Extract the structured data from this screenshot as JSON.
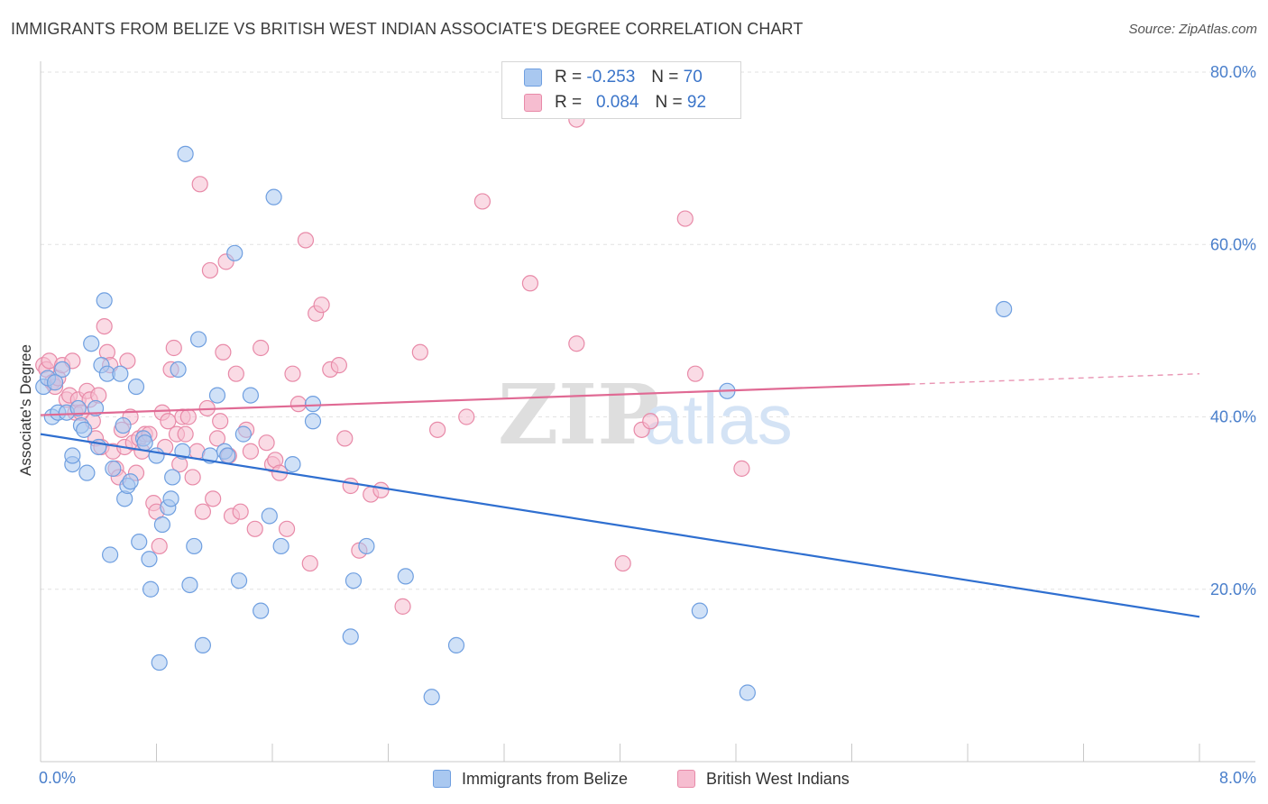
{
  "title": "IMMIGRANTS FROM BELIZE VS BRITISH WEST INDIAN ASSOCIATE'S DEGREE CORRELATION CHART",
  "source": "Source: ZipAtlas.com",
  "watermark": {
    "zip": "ZIP",
    "atlas": "atlas"
  },
  "legend_top": [
    {
      "r_label": "R =",
      "r_value": "-0.253",
      "n_label": "N =",
      "n_value": "70",
      "color": "#a9c8f0",
      "border": "#6f9fe0"
    },
    {
      "r_label": "R =",
      "r_value": "0.084",
      "n_label": "N =",
      "n_value": "92",
      "color": "#f6bdd0",
      "border": "#e88aa8"
    }
  ],
  "legend_bottom": [
    {
      "label": "Immigrants from Belize",
      "color": "#a9c8f0",
      "border": "#6f9fe0"
    },
    {
      "label": "British West Indians",
      "color": "#f6bdd0",
      "border": "#e88aa8"
    }
  ],
  "chart_data": {
    "type": "scatter",
    "title": "IMMIGRANTS FROM BELIZE VS BRITISH WEST INDIAN ASSOCIATE'S DEGREE CORRELATION CHART",
    "xlabel": "",
    "ylabel": "Associate's Degree",
    "xlim": [
      0,
      8
    ],
    "ylim": [
      0,
      80
    ],
    "x_tick_labels": [
      "0.0%",
      "8.0%"
    ],
    "y_ticks": [
      20,
      40,
      60,
      80
    ],
    "y_tick_labels": [
      "20.0%",
      "40.0%",
      "60.0%",
      "80.0%"
    ],
    "grid": true,
    "legend_position": "top-center",
    "series": [
      {
        "name": "Immigrants from Belize",
        "color": "#6f9fe0",
        "fill": "#a9c8f0",
        "line_color": "#2f6fd0",
        "trend": {
          "x0": 0,
          "y0": 38.0,
          "x1": 8,
          "y1": 16.8,
          "dashed_from": null
        },
        "points": [
          [
            0.02,
            43.5
          ],
          [
            0.05,
            44.5
          ],
          [
            0.08,
            40
          ],
          [
            0.12,
            40.5
          ],
          [
            0.15,
            45.5
          ],
          [
            0.18,
            40.5
          ],
          [
            0.22,
            34.5
          ],
          [
            0.22,
            35.5
          ],
          [
            0.28,
            39
          ],
          [
            0.3,
            38.5
          ],
          [
            0.32,
            33.5
          ],
          [
            0.35,
            48.5
          ],
          [
            0.38,
            41
          ],
          [
            0.42,
            46
          ],
          [
            0.44,
            53.5
          ],
          [
            0.46,
            45
          ],
          [
            0.48,
            24
          ],
          [
            0.5,
            34
          ],
          [
            0.55,
            45
          ],
          [
            0.57,
            39
          ],
          [
            0.58,
            30.5
          ],
          [
            0.6,
            32
          ],
          [
            0.62,
            32.5
          ],
          [
            0.66,
            43.5
          ],
          [
            0.68,
            25.5
          ],
          [
            0.71,
            37.5
          ],
          [
            0.72,
            37
          ],
          [
            0.75,
            23.5
          ],
          [
            0.76,
            20
          ],
          [
            0.8,
            35.5
          ],
          [
            0.82,
            11.5
          ],
          [
            0.84,
            27.5
          ],
          [
            0.88,
            29.5
          ],
          [
            0.9,
            30.5
          ],
          [
            0.91,
            33
          ],
          [
            0.95,
            45.5
          ],
          [
            0.98,
            36
          ],
          [
            1.0,
            70.5
          ],
          [
            1.03,
            20.5
          ],
          [
            1.06,
            25
          ],
          [
            1.09,
            49
          ],
          [
            1.12,
            13.5
          ],
          [
            1.17,
            35.5
          ],
          [
            1.22,
            42.5
          ],
          [
            1.27,
            36
          ],
          [
            1.29,
            35.5
          ],
          [
            1.34,
            59
          ],
          [
            1.37,
            21
          ],
          [
            1.4,
            38
          ],
          [
            1.45,
            42.5
          ],
          [
            1.52,
            17.5
          ],
          [
            1.58,
            28.5
          ],
          [
            1.61,
            65.5
          ],
          [
            1.66,
            25
          ],
          [
            1.74,
            34.5
          ],
          [
            1.88,
            41.5
          ],
          [
            1.88,
            39.5
          ],
          [
            2.14,
            14.5
          ],
          [
            2.16,
            21
          ],
          [
            2.25,
            25
          ],
          [
            2.52,
            21.5
          ],
          [
            2.7,
            7.5
          ],
          [
            2.87,
            13.5
          ],
          [
            4.55,
            17.5
          ],
          [
            4.74,
            43
          ],
          [
            4.88,
            8
          ],
          [
            6.65,
            52.5
          ],
          [
            0.1,
            44
          ],
          [
            0.26,
            41
          ],
          [
            0.4,
            36.5
          ]
        ]
      },
      {
        "name": "British West Indians",
        "color": "#e88aa8",
        "fill": "#f6bdd0",
        "line_color": "#e06a94",
        "trend": {
          "x0": 0,
          "y0": 40.2,
          "x1": 8,
          "y1": 45.0,
          "dashed_from": 6.0
        },
        "points": [
          [
            0.02,
            46
          ],
          [
            0.04,
            45.5
          ],
          [
            0.06,
            46.5
          ],
          [
            0.08,
            44
          ],
          [
            0.1,
            43.5
          ],
          [
            0.12,
            44.5
          ],
          [
            0.15,
            46
          ],
          [
            0.18,
            42
          ],
          [
            0.2,
            42.5
          ],
          [
            0.22,
            46.5
          ],
          [
            0.24,
            40.5
          ],
          [
            0.26,
            42
          ],
          [
            0.28,
            40.5
          ],
          [
            0.32,
            43
          ],
          [
            0.34,
            42
          ],
          [
            0.36,
            39.5
          ],
          [
            0.38,
            37.5
          ],
          [
            0.4,
            42.5
          ],
          [
            0.42,
            36.5
          ],
          [
            0.44,
            50.5
          ],
          [
            0.46,
            47.5
          ],
          [
            0.48,
            46
          ],
          [
            0.5,
            36
          ],
          [
            0.52,
            34
          ],
          [
            0.54,
            33
          ],
          [
            0.56,
            38.5
          ],
          [
            0.58,
            36.5
          ],
          [
            0.6,
            46.5
          ],
          [
            0.62,
            40
          ],
          [
            0.64,
            37
          ],
          [
            0.66,
            33.5
          ],
          [
            0.68,
            37.5
          ],
          [
            0.7,
            36
          ],
          [
            0.72,
            38
          ],
          [
            0.75,
            38
          ],
          [
            0.78,
            30
          ],
          [
            0.8,
            29
          ],
          [
            0.82,
            25
          ],
          [
            0.84,
            40.5
          ],
          [
            0.86,
            36.5
          ],
          [
            0.88,
            39.5
          ],
          [
            0.9,
            45.5
          ],
          [
            0.92,
            48
          ],
          [
            0.94,
            38
          ],
          [
            0.96,
            34.5
          ],
          [
            0.98,
            40
          ],
          [
            1.0,
            38
          ],
          [
            1.02,
            40
          ],
          [
            1.05,
            33
          ],
          [
            1.08,
            36
          ],
          [
            1.1,
            67
          ],
          [
            1.12,
            29
          ],
          [
            1.15,
            41
          ],
          [
            1.17,
            57
          ],
          [
            1.19,
            30.5
          ],
          [
            1.22,
            37.5
          ],
          [
            1.24,
            39.5
          ],
          [
            1.26,
            47.5
          ],
          [
            1.28,
            58
          ],
          [
            1.3,
            35.5
          ],
          [
            1.32,
            28.5
          ],
          [
            1.35,
            45
          ],
          [
            1.38,
            29
          ],
          [
            1.42,
            38.5
          ],
          [
            1.45,
            36
          ],
          [
            1.48,
            27
          ],
          [
            1.52,
            48
          ],
          [
            1.56,
            37
          ],
          [
            1.6,
            34.5
          ],
          [
            1.62,
            35
          ],
          [
            1.65,
            33.5
          ],
          [
            1.7,
            27
          ],
          [
            1.74,
            45
          ],
          [
            1.78,
            41.5
          ],
          [
            1.83,
            60.5
          ],
          [
            1.86,
            23
          ],
          [
            1.9,
            52
          ],
          [
            1.94,
            53
          ],
          [
            2.0,
            45.5
          ],
          [
            2.06,
            46
          ],
          [
            2.1,
            37.5
          ],
          [
            2.14,
            32
          ],
          [
            2.2,
            24.5
          ],
          [
            2.28,
            31
          ],
          [
            2.35,
            31.5
          ],
          [
            2.5,
            18
          ],
          [
            2.62,
            47.5
          ],
          [
            2.74,
            38.5
          ],
          [
            2.94,
            40
          ],
          [
            3.05,
            65
          ],
          [
            3.38,
            55.5
          ],
          [
            3.7,
            74.5
          ]
        ],
        "extra_points": [
          [
            3.7,
            48.5
          ],
          [
            4.02,
            23
          ],
          [
            4.15,
            38.5
          ],
          [
            4.21,
            39.5
          ],
          [
            4.45,
            63
          ],
          [
            4.52,
            45
          ],
          [
            4.84,
            34
          ]
        ]
      }
    ]
  }
}
